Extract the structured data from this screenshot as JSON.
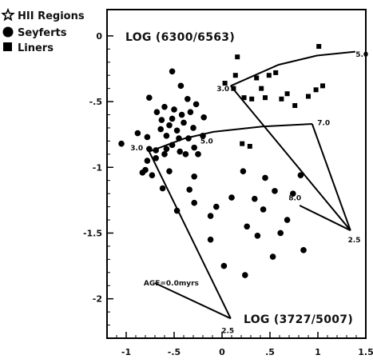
{
  "chart_data": {
    "type": "scatter",
    "title": "",
    "inner_labels": {
      "y_title": "LOG (6300/6563)",
      "x_title": "LOG (3727/5007)"
    },
    "xlim": [
      -1.2,
      1.5
    ],
    "ylim": [
      -2.3,
      0.2
    ],
    "x_ticks": [
      "-1",
      "-.5",
      "0",
      ".5",
      "1",
      "1.5"
    ],
    "x_tick_values": [
      -1,
      -0.5,
      0,
      0.5,
      1,
      1.5
    ],
    "y_ticks": [
      "0",
      "-.5",
      "-1",
      "-1.5",
      "-2"
    ],
    "y_tick_values": [
      0,
      -0.5,
      -1,
      -1.5,
      -2
    ],
    "legend": [
      {
        "label": "HII Regions",
        "marker": "star-icon"
      },
      {
        "label": "Seyferts",
        "marker": "circle-icon"
      },
      {
        "label": "Liners",
        "marker": "square-icon"
      }
    ],
    "series": [
      {
        "name": "Seyferts",
        "marker": "circle",
        "points": [
          [
            -1.05,
            -0.82
          ],
          [
            -0.83,
            -1.04
          ],
          [
            -0.78,
            -0.95
          ],
          [
            -0.73,
            -1.06
          ],
          [
            -0.78,
            -0.77
          ],
          [
            -0.76,
            -0.86
          ],
          [
            -0.68,
            -0.58
          ],
          [
            -0.69,
            -0.87
          ],
          [
            -0.69,
            -0.93
          ],
          [
            -0.63,
            -0.64
          ],
          [
            -0.64,
            -0.71
          ],
          [
            -0.6,
            -0.54
          ],
          [
            -0.58,
            -0.76
          ],
          [
            -0.58,
            -0.86
          ],
          [
            -0.55,
            -0.68
          ],
          [
            -0.52,
            -0.63
          ],
          [
            -0.52,
            -0.83
          ],
          [
            -0.5,
            -0.56
          ],
          [
            -0.47,
            -0.72
          ],
          [
            -0.45,
            -0.78
          ],
          [
            -0.44,
            -0.88
          ],
          [
            -0.43,
            -0.38
          ],
          [
            -0.42,
            -0.6
          ],
          [
            -0.4,
            -0.66
          ],
          [
            -0.38,
            -0.9
          ],
          [
            -0.36,
            -0.48
          ],
          [
            -0.35,
            -0.78
          ],
          [
            -0.33,
            -0.58
          ],
          [
            -0.3,
            -0.7
          ],
          [
            -0.29,
            -0.85
          ],
          [
            -0.27,
            -0.52
          ],
          [
            -0.25,
            -0.9
          ],
          [
            -0.2,
            -0.76
          ],
          [
            -0.19,
            -0.62
          ],
          [
            -0.52,
            -0.27
          ],
          [
            -0.76,
            -0.47
          ],
          [
            -0.88,
            -0.74
          ],
          [
            -0.6,
            -0.9
          ],
          [
            -0.8,
            -1.02
          ],
          [
            -0.62,
            -1.16
          ],
          [
            -0.47,
            -1.33
          ],
          [
            -0.34,
            -1.17
          ],
          [
            -0.29,
            -1.27
          ],
          [
            -0.29,
            -1.07
          ],
          [
            -0.12,
            -1.37
          ],
          [
            -0.12,
            -1.55
          ],
          [
            -0.06,
            -1.3
          ],
          [
            0.02,
            -1.75
          ],
          [
            0.1,
            -1.23
          ],
          [
            0.22,
            -1.03
          ],
          [
            0.26,
            -1.45
          ],
          [
            0.34,
            -1.24
          ],
          [
            0.37,
            -1.52
          ],
          [
            0.43,
            -1.32
          ],
          [
            0.45,
            -1.08
          ],
          [
            0.53,
            -1.68
          ],
          [
            0.55,
            -1.18
          ],
          [
            0.61,
            -1.5
          ],
          [
            0.68,
            -1.4
          ],
          [
            0.74,
            -1.2
          ],
          [
            0.82,
            -1.06
          ],
          [
            0.85,
            -1.63
          ],
          [
            0.24,
            -1.82
          ],
          [
            -0.55,
            -1.03
          ]
        ]
      },
      {
        "name": "Liners",
        "marker": "square",
        "points": [
          [
            0.16,
            -0.16
          ],
          [
            0.31,
            -0.48
          ],
          [
            0.36,
            -0.32
          ],
          [
            0.41,
            -0.4
          ],
          [
            0.45,
            -0.47
          ],
          [
            0.49,
            -0.3
          ],
          [
            0.56,
            -0.28
          ],
          [
            0.62,
            -0.48
          ],
          [
            0.68,
            -0.44
          ],
          [
            0.76,
            -0.53
          ],
          [
            0.9,
            -0.46
          ],
          [
            0.98,
            -0.41
          ],
          [
            1.05,
            -0.38
          ],
          [
            1.01,
            -0.08
          ],
          [
            0.12,
            -0.4
          ],
          [
            0.23,
            -0.47
          ],
          [
            0.21,
            -0.82
          ],
          [
            0.29,
            -0.84
          ],
          [
            0.14,
            -0.3
          ],
          [
            0.03,
            -0.36
          ]
        ]
      }
    ],
    "model_curves": [
      [
        [
          -0.76,
          -0.88
        ],
        [
          -0.39,
          -0.78
        ],
        [
          -0.09,
          -0.73
        ],
        [
          0.42,
          -0.69
        ],
        [
          0.94,
          -0.67
        ]
      ],
      [
        [
          0.09,
          -0.38
        ],
        [
          0.59,
          -0.22
        ],
        [
          0.99,
          -0.15
        ],
        [
          1.39,
          -0.12
        ]
      ],
      [
        [
          -0.76,
          -0.88
        ],
        [
          0.09,
          -2.15
        ]
      ],
      [
        [
          -0.7,
          -1.88
        ],
        [
          0.09,
          -2.15
        ]
      ],
      [
        [
          0.09,
          -0.38
        ],
        [
          1.34,
          -1.48
        ]
      ],
      [
        [
          0.94,
          -0.67
        ],
        [
          1.34,
          -1.48
        ]
      ],
      [
        [
          0.81,
          -1.29
        ],
        [
          1.34,
          -1.48
        ]
      ]
    ],
    "annotations": [
      {
        "text": "3.0",
        "x": -0.89,
        "y": -0.87
      },
      {
        "text": "5.0",
        "x": -0.16,
        "y": -0.82
      },
      {
        "text": "7.0",
        "x": 1.06,
        "y": -0.68
      },
      {
        "text": "3.0",
        "x": 0.01,
        "y": -0.42
      },
      {
        "text": "5.0",
        "x": 1.46,
        "y": -0.16
      },
      {
        "text": "2.5",
        "x": 1.38,
        "y": -1.57
      },
      {
        "text": "8.0",
        "x": 0.76,
        "y": -1.25
      },
      {
        "text": "AGE=0.0myrs",
        "x": -0.53,
        "y": -1.9
      },
      {
        "text": "2.5",
        "x": 0.06,
        "y": -2.26
      }
    ],
    "grid": false
  }
}
